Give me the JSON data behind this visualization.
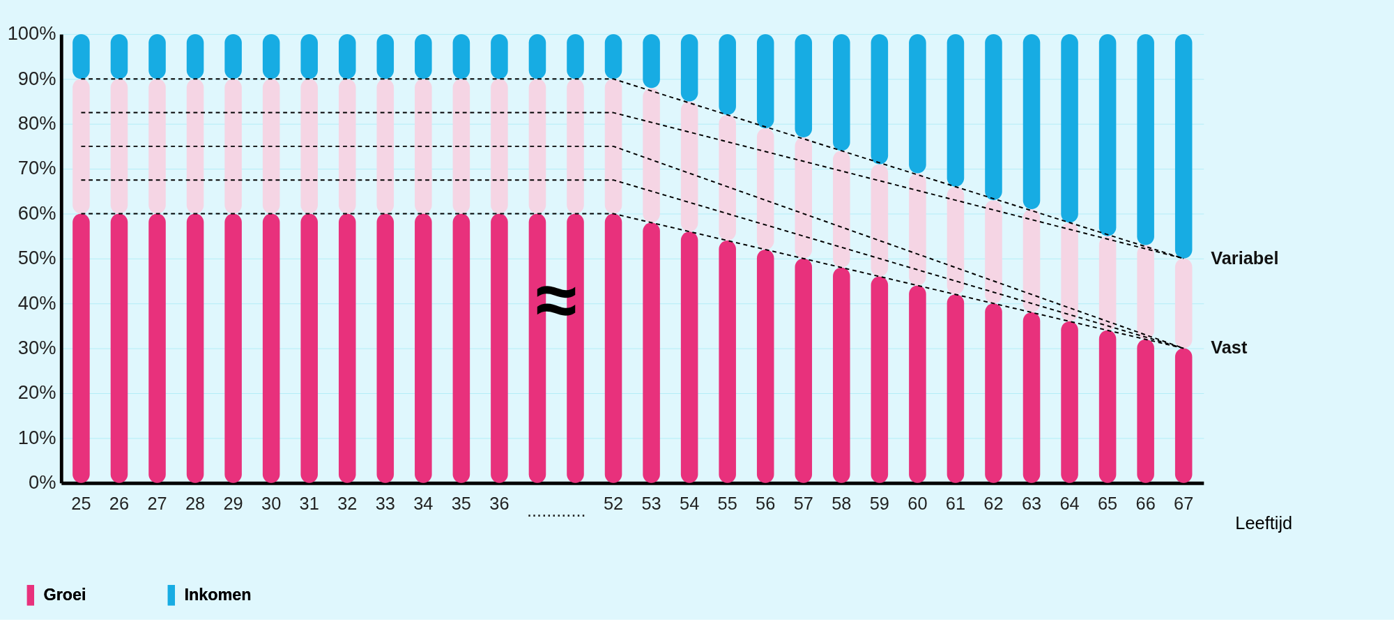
{
  "chart_data": {
    "type": "bar",
    "stacked": true,
    "xlabel": "Leeftijd",
    "categories": [
      "25",
      "26",
      "27",
      "28",
      "29",
      "30",
      "31",
      "32",
      "33",
      "34",
      "35",
      "36",
      null,
      null,
      "52",
      "53",
      "54",
      "55",
      "56",
      "57",
      "58",
      "59",
      "60",
      "61",
      "62",
      "63",
      "64",
      "65",
      "66",
      "67"
    ],
    "series": [
      {
        "name": "Groei",
        "color": "#e8317c",
        "values": [
          60,
          60,
          60,
          60,
          60,
          60,
          60,
          60,
          60,
          60,
          60,
          60,
          60,
          60,
          60,
          58,
          56,
          54,
          52,
          50,
          48,
          46,
          44,
          42,
          40,
          38,
          36,
          34,
          32,
          30
        ]
      },
      {
        "color": "#f5d5e4",
        "values": [
          30,
          30,
          30,
          30,
          30,
          30,
          30,
          30,
          30,
          30,
          30,
          30,
          30,
          30,
          30,
          30,
          29,
          28,
          27,
          27,
          26,
          25,
          25,
          24,
          23,
          23,
          22,
          21,
          21,
          20
        ]
      },
      {
        "name": "Inkomen",
        "color": "#17ace3",
        "values": [
          10,
          10,
          10,
          10,
          10,
          10,
          10,
          10,
          10,
          10,
          10,
          10,
          10,
          10,
          10,
          12,
          15,
          18,
          21,
          23,
          26,
          29,
          31,
          34,
          37,
          39,
          42,
          45,
          47,
          50
        ]
      },
      {
        "type": "line",
        "line_style": "dashed",
        "color": "#000000",
        "x": [
          "25",
          "52",
          "67"
        ],
        "values": [
          90,
          90,
          50
        ]
      },
      {
        "type": "line",
        "line_style": "dashed",
        "color": "#000000",
        "x": [
          "25",
          "52",
          "67"
        ],
        "values": [
          82.5,
          82.5,
          50
        ]
      },
      {
        "type": "line",
        "line_style": "dashed",
        "color": "#000000",
        "x": [
          "25",
          "52",
          "67"
        ],
        "values": [
          75,
          75,
          30
        ]
      },
      {
        "type": "line",
        "line_style": "dashed",
        "color": "#000000",
        "x": [
          "25",
          "52",
          "67"
        ],
        "values": [
          67.5,
          67.5,
          30
        ]
      },
      {
        "type": "line",
        "line_style": "dashed",
        "color": "#000000",
        "x": [
          "25",
          "52",
          "67"
        ],
        "values": [
          60,
          60,
          30
        ]
      }
    ],
    "ylim": [
      0,
      100
    ],
    "yticks": [
      {
        "value": 0,
        "label": "0%"
      },
      {
        "value": 10,
        "label": "10%"
      },
      {
        "value": 20,
        "label": "20%"
      },
      {
        "value": 30,
        "label": "30%"
      },
      {
        "value": 40,
        "label": "40%"
      },
      {
        "value": 50,
        "label": "50%"
      },
      {
        "value": 60,
        "label": "60%"
      },
      {
        "value": 70,
        "label": "70%"
      },
      {
        "value": 80,
        "label": "80%"
      },
      {
        "value": 90,
        "label": "90%"
      },
      {
        "value": 100,
        "label": "100%"
      }
    ],
    "grid": "y",
    "legend": "bottom left",
    "annotations": [
      {
        "text": "Variabel",
        "x": "67",
        "y": 50
      },
      {
        "text": "Vast",
        "x": "67",
        "y": 30
      },
      "≈",
      "............"
    ]
  }
}
